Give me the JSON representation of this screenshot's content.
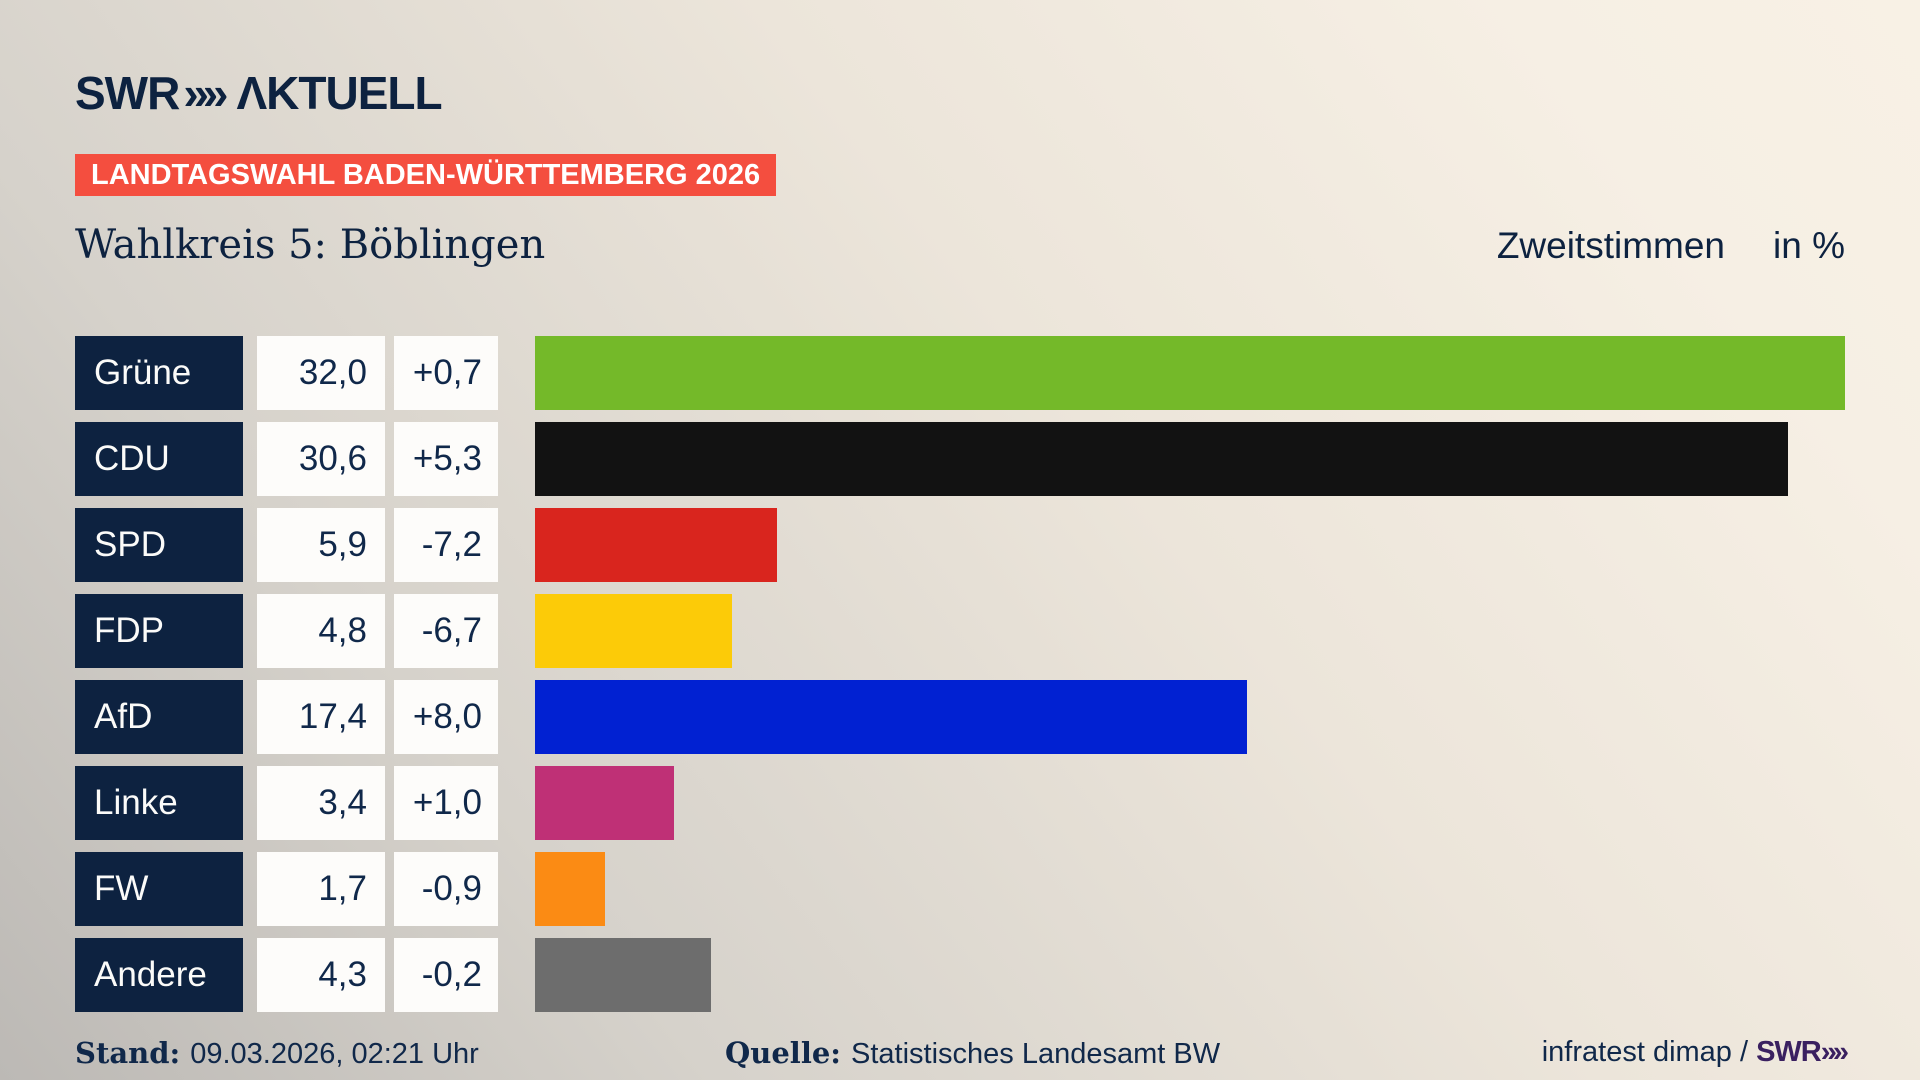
{
  "header": {
    "logo_swr": "SWR",
    "logo_chevrons": "»»",
    "logo_aktuell": "ΛKTUELL",
    "banner": "LANDTAGSWAHL BADEN-WÜRTTEMBERG 2026",
    "banner_color": "#f44e3f"
  },
  "title": {
    "left": "Wahlkreis 5: Böblingen",
    "right_main": "Zweitstimmen",
    "right_unit": "in %"
  },
  "chart_data": {
    "type": "bar",
    "orientation": "horizontal",
    "title": "Wahlkreis 5: Böblingen",
    "subtitle": "Zweitstimmen in %",
    "categories": [
      "Grüne",
      "CDU",
      "SPD",
      "FDP",
      "AfD",
      "Linke",
      "FW",
      "Andere"
    ],
    "values": [
      32.0,
      30.6,
      5.9,
      4.8,
      17.4,
      3.4,
      1.7,
      4.3
    ],
    "value_labels": [
      "32,0",
      "30,6",
      "5,9",
      "4,8",
      "17,4",
      "3,4",
      "1,7",
      "4,3"
    ],
    "change_labels": [
      "+0,7",
      "+5,3",
      "-7,2",
      "-6,7",
      "+8,0",
      "+1,0",
      "-0,9",
      "-0,2"
    ],
    "bar_colors": [
      "#74b929",
      "#121212",
      "#d9251e",
      "#fccb08",
      "#0121d2",
      "#bf3076",
      "#fb8b14",
      "#6d6d6d"
    ],
    "xmax": 32.0,
    "grid": false,
    "legend": false,
    "label_bg": "#0d2240",
    "cell_bg": "#fdfcfa"
  },
  "footer": {
    "stand_label": "Stand:",
    "stand_value": "09.03.2026, 02:21 Uhr",
    "quelle_label": "Quelle:",
    "quelle_value": "Statistisches Landesamt BW",
    "credit_text": "infratest dimap /",
    "credit_brand_swr": "SWR",
    "credit_brand_chevrons": "»»"
  }
}
